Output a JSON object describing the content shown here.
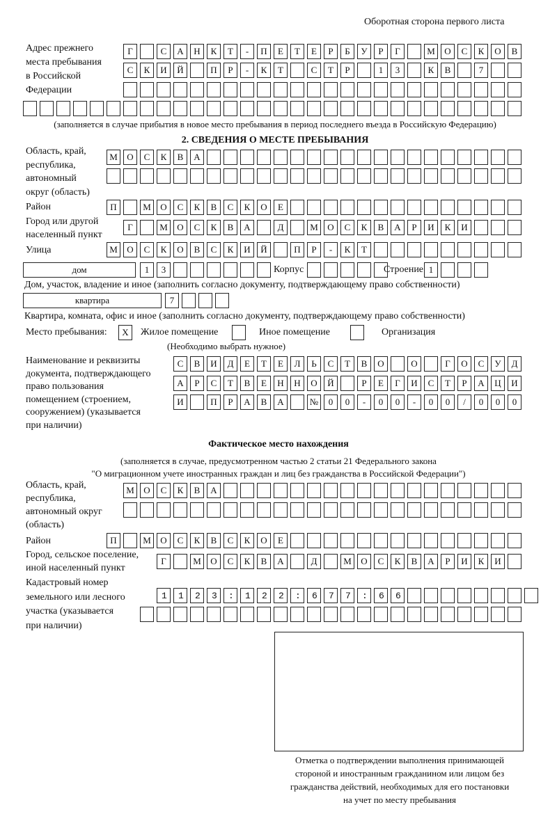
{
  "header": "Оборотная сторона первого листа",
  "prev_address": {
    "label": "Адрес прежнего\nместа пребывания\nв Российской\nФедерации",
    "rows": [
      "Г САНКТ-ПЕТЕРБУРГ МОСКОВ",
      "СКИЙ ПР-КТ СТР 13 КВ 7  ",
      "                        ",
      "                              "
    ],
    "note": "(заполняется в случае прибытия в новое место пребывания в период последнего въезда в Российскую Федерацию)"
  },
  "section2": {
    "title": "2. СВЕДЕНИЯ О МЕСТЕ ПРЕБЫВАНИЯ",
    "region_label": "Область, край,\nреспублика,\nавтономный\nокруг (область)",
    "region_rows": [
      "МОСКВА                   ",
      "                         "
    ],
    "district_label": "Район",
    "district_row": "П МОСКВСКОЕ              ",
    "city_label": "Город или другой\nнаселенный пункт",
    "city_row": "Г МОСКВА Д МОСКВАРИКИ   ",
    "street_label": "Улица",
    "street_row": "МОСКОВСКИЙ ПР-КТ         ",
    "house_type": "дом",
    "house_cells": "13      ",
    "korpus_label": "Корпус",
    "korpus_cells": "     ",
    "building_label": "Строение",
    "building_cells": "1   ",
    "house_caption": "Дом, участок, владение и иное (заполнить согласно документу, подтверждающему право собственности)",
    "flat_type": "квартира",
    "flat_cells": "7   ",
    "flat_caption": "Квартира, комната, офис и иное (заполнить согласно документу, подтверждающему право собственности)",
    "stay_label": "Место пребывания:",
    "stay_options": [
      {
        "label": "Жилое помещение",
        "mark": "Х",
        "checked": true
      },
      {
        "label": "Иное помещение",
        "mark": "",
        "checked": false
      },
      {
        "label": "Организация",
        "mark": "",
        "checked": false
      }
    ],
    "stay_note": "(Необходимо выбрать нужное)",
    "doc_label": "Наименование и реквизиты\nдокумента, подтверждающего\nправо пользования\nпомещением (строением,\nсооружением) (указывается\nпри наличии)",
    "doc_rows": [
      "СВИДЕТЕЛЬСТВО О ГОСУД",
      "АРСТВЕННОЙ РЕГИСТРАЦИ",
      "И ПРАВА №00-00-00/000"
    ]
  },
  "actual": {
    "title": "Фактическое место нахождения",
    "subtitle1": "(заполняется в случае, предусмотренном частью 2 статьи 21 Федерального закона",
    "subtitle2": "\"О миграционном учете иностранных граждан и лиц без гражданства в Российской Федерации\")",
    "region_label": "Область, край,\nреспублика,\nавтономный округ\n(область)",
    "region_rows": [
      "МОСКВА                  ",
      "                        "
    ],
    "district_label": "Район",
    "district_row": "П МОСКВСКОЕ              ",
    "city_label": "Город, сельское поселение,\nиной населенный пункт",
    "city_row": "Г МОСКВА Д МОСКВАРИКИ ",
    "cadastre_label": "Кадастровый номер\nземельного или лесного\nучастка (указывается\nпри наличии)",
    "cadastre_rows": [
      "1123:122:677:66        ",
      "                       "
    ]
  },
  "stamp_caption": "Отметка о подтверждении выполнения принимающей\nстороной и иностранным гражданином или лицом без\nгражданства действий, необходимых для его постановки\nна учет по месту пребывания"
}
